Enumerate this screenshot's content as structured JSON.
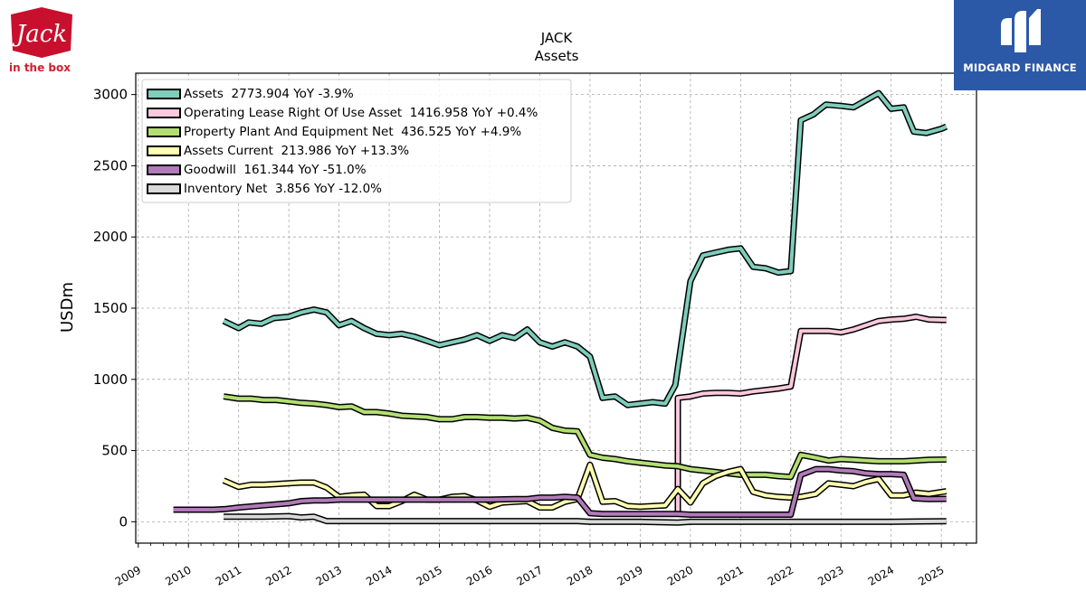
{
  "brand": {
    "left_logo_text": "Jack",
    "left_logo_subtext": "in the box",
    "right_logo_text": "MIDGARD FINANCE",
    "left_logo_color": "#c8102e",
    "right_logo_color": "#2c58a8"
  },
  "chart_data": {
    "type": "line",
    "title": "JACK",
    "subtitle": "Assets",
    "xlabel": "",
    "ylabel": "USDm",
    "xlim": [
      2008.95,
      2025.7
    ],
    "ylim": [
      -150,
      3150
    ],
    "yticks": [
      0,
      500,
      1000,
      1500,
      2000,
      2500,
      3000
    ],
    "xticks": [
      "2009",
      "2010",
      "2011",
      "2012",
      "2013",
      "2014",
      "2015",
      "2016",
      "2017",
      "2018",
      "2019",
      "2020",
      "2021",
      "2022",
      "2023",
      "2024",
      "2025"
    ],
    "grid": true,
    "legend_position": "top-left",
    "series": [
      {
        "name": "Assets",
        "legend": "Assets  2773.904 YoY -3.9%",
        "color": "#7fcdbb",
        "points": [
          [
            2010.7,
            1410
          ],
          [
            2011.0,
            1360
          ],
          [
            2011.2,
            1400
          ],
          [
            2011.45,
            1390
          ],
          [
            2011.7,
            1430
          ],
          [
            2012.0,
            1440
          ],
          [
            2012.25,
            1470
          ],
          [
            2012.5,
            1490
          ],
          [
            2012.75,
            1470
          ],
          [
            2013.0,
            1380
          ],
          [
            2013.25,
            1410
          ],
          [
            2013.5,
            1360
          ],
          [
            2013.75,
            1320
          ],
          [
            2014.0,
            1310
          ],
          [
            2014.25,
            1320
          ],
          [
            2014.5,
            1300
          ],
          [
            2014.75,
            1270
          ],
          [
            2015.0,
            1240
          ],
          [
            2015.25,
            1260
          ],
          [
            2015.5,
            1280
          ],
          [
            2015.75,
            1310
          ],
          [
            2016.0,
            1270
          ],
          [
            2016.25,
            1310
          ],
          [
            2016.5,
            1290
          ],
          [
            2016.75,
            1350
          ],
          [
            2017.0,
            1260
          ],
          [
            2017.25,
            1230
          ],
          [
            2017.5,
            1260
          ],
          [
            2017.75,
            1230
          ],
          [
            2018.0,
            1160
          ],
          [
            2018.25,
            870
          ],
          [
            2018.5,
            880
          ],
          [
            2018.75,
            820
          ],
          [
            2019.0,
            830
          ],
          [
            2019.25,
            840
          ],
          [
            2019.5,
            830
          ],
          [
            2019.7,
            960
          ],
          [
            2020.0,
            1690
          ],
          [
            2020.25,
            1870
          ],
          [
            2020.5,
            1890
          ],
          [
            2020.75,
            1910
          ],
          [
            2021.0,
            1920
          ],
          [
            2021.25,
            1790
          ],
          [
            2021.5,
            1780
          ],
          [
            2021.75,
            1750
          ],
          [
            2022.0,
            1760
          ],
          [
            2022.2,
            2820
          ],
          [
            2022.45,
            2860
          ],
          [
            2022.7,
            2930
          ],
          [
            2023.0,
            2920
          ],
          [
            2023.25,
            2910
          ],
          [
            2023.5,
            2960
          ],
          [
            2023.75,
            3010
          ],
          [
            2024.0,
            2900
          ],
          [
            2024.25,
            2910
          ],
          [
            2024.45,
            2740
          ],
          [
            2024.7,
            2730
          ],
          [
            2025.0,
            2760
          ],
          [
            2025.1,
            2775
          ]
        ]
      },
      {
        "name": "Operating Lease Right Of Use Asset",
        "legend": "Operating Lease Right Of Use Asset  1416.958 YoY +0.4%",
        "color": "#fbc8dc",
        "points": [
          [
            2019.75,
            60
          ],
          [
            2019.75,
            870
          ],
          [
            2020.0,
            880
          ],
          [
            2020.25,
            900
          ],
          [
            2020.5,
            905
          ],
          [
            2020.75,
            905
          ],
          [
            2021.0,
            900
          ],
          [
            2021.25,
            915
          ],
          [
            2021.5,
            925
          ],
          [
            2021.75,
            935
          ],
          [
            2022.0,
            950
          ],
          [
            2022.2,
            1340
          ],
          [
            2022.5,
            1340
          ],
          [
            2022.75,
            1340
          ],
          [
            2023.0,
            1330
          ],
          [
            2023.25,
            1350
          ],
          [
            2023.5,
            1380
          ],
          [
            2023.75,
            1410
          ],
          [
            2024.0,
            1420
          ],
          [
            2024.25,
            1425
          ],
          [
            2024.5,
            1440
          ],
          [
            2024.75,
            1420
          ],
          [
            2025.1,
            1417
          ]
        ]
      },
      {
        "name": "Property Plant And Equipment Net",
        "legend": "Property Plant And Equipment Net  436.525 YoY +4.9%",
        "color": "#b3df72",
        "points": [
          [
            2010.7,
            880
          ],
          [
            2011.0,
            865
          ],
          [
            2011.25,
            865
          ],
          [
            2011.5,
            855
          ],
          [
            2011.75,
            855
          ],
          [
            2012.0,
            845
          ],
          [
            2012.25,
            835
          ],
          [
            2012.5,
            830
          ],
          [
            2012.75,
            820
          ],
          [
            2013.0,
            805
          ],
          [
            2013.25,
            810
          ],
          [
            2013.5,
            770
          ],
          [
            2013.75,
            770
          ],
          [
            2014.0,
            760
          ],
          [
            2014.25,
            745
          ],
          [
            2014.5,
            740
          ],
          [
            2014.75,
            735
          ],
          [
            2015.0,
            720
          ],
          [
            2015.25,
            720
          ],
          [
            2015.5,
            735
          ],
          [
            2015.75,
            735
          ],
          [
            2016.0,
            730
          ],
          [
            2016.25,
            730
          ],
          [
            2016.5,
            725
          ],
          [
            2016.75,
            730
          ],
          [
            2017.0,
            710
          ],
          [
            2017.25,
            660
          ],
          [
            2017.5,
            640
          ],
          [
            2017.75,
            635
          ],
          [
            2018.0,
            470
          ],
          [
            2018.25,
            450
          ],
          [
            2018.5,
            440
          ],
          [
            2018.75,
            425
          ],
          [
            2019.0,
            415
          ],
          [
            2019.25,
            405
          ],
          [
            2019.5,
            395
          ],
          [
            2019.75,
            390
          ],
          [
            2020.0,
            370
          ],
          [
            2020.25,
            360
          ],
          [
            2020.5,
            350
          ],
          [
            2020.75,
            340
          ],
          [
            2021.0,
            330
          ],
          [
            2021.25,
            330
          ],
          [
            2021.5,
            330
          ],
          [
            2021.75,
            320
          ],
          [
            2022.0,
            315
          ],
          [
            2022.2,
            470
          ],
          [
            2022.5,
            450
          ],
          [
            2022.75,
            430
          ],
          [
            2023.0,
            440
          ],
          [
            2023.25,
            435
          ],
          [
            2023.5,
            430
          ],
          [
            2023.75,
            425
          ],
          [
            2024.0,
            425
          ],
          [
            2024.25,
            425
          ],
          [
            2024.5,
            430
          ],
          [
            2024.75,
            435
          ],
          [
            2025.1,
            437
          ]
        ]
      },
      {
        "name": "Assets Current",
        "legend": "Assets Current  213.986 YoY +13.3%",
        "color": "#ffffb3",
        "points": [
          [
            2010.7,
            290
          ],
          [
            2011.0,
            245
          ],
          [
            2011.25,
            260
          ],
          [
            2011.5,
            260
          ],
          [
            2011.75,
            265
          ],
          [
            2012.0,
            270
          ],
          [
            2012.25,
            275
          ],
          [
            2012.5,
            275
          ],
          [
            2012.75,
            240
          ],
          [
            2013.0,
            175
          ],
          [
            2013.25,
            185
          ],
          [
            2013.5,
            190
          ],
          [
            2013.75,
            110
          ],
          [
            2014.0,
            110
          ],
          [
            2014.25,
            145
          ],
          [
            2014.5,
            190
          ],
          [
            2014.75,
            155
          ],
          [
            2015.0,
            155
          ],
          [
            2015.25,
            175
          ],
          [
            2015.5,
            180
          ],
          [
            2015.75,
            150
          ],
          [
            2016.0,
            105
          ],
          [
            2016.25,
            135
          ],
          [
            2016.5,
            140
          ],
          [
            2016.75,
            145
          ],
          [
            2017.0,
            100
          ],
          [
            2017.25,
            100
          ],
          [
            2017.5,
            140
          ],
          [
            2017.75,
            160
          ],
          [
            2018.0,
            400
          ],
          [
            2018.25,
            140
          ],
          [
            2018.5,
            145
          ],
          [
            2018.75,
            110
          ],
          [
            2019.0,
            105
          ],
          [
            2019.25,
            110
          ],
          [
            2019.5,
            115
          ],
          [
            2019.75,
            230
          ],
          [
            2020.0,
            135
          ],
          [
            2020.25,
            270
          ],
          [
            2020.5,
            320
          ],
          [
            2020.75,
            350
          ],
          [
            2021.0,
            370
          ],
          [
            2021.25,
            210
          ],
          [
            2021.5,
            185
          ],
          [
            2021.75,
            175
          ],
          [
            2022.0,
            170
          ],
          [
            2022.2,
            175
          ],
          [
            2022.5,
            195
          ],
          [
            2022.75,
            270
          ],
          [
            2023.0,
            260
          ],
          [
            2023.25,
            250
          ],
          [
            2023.5,
            280
          ],
          [
            2023.75,
            300
          ],
          [
            2024.0,
            185
          ],
          [
            2024.25,
            185
          ],
          [
            2024.5,
            205
          ],
          [
            2024.75,
            195
          ],
          [
            2025.1,
            214
          ]
        ]
      },
      {
        "name": "Goodwill",
        "legend": "Goodwill  161.344 YoY -51.0%",
        "color": "#b17ab9",
        "points": [
          [
            2009.7,
            85
          ],
          [
            2010.0,
            85
          ],
          [
            2010.5,
            85
          ],
          [
            2010.75,
            90
          ],
          [
            2011.0,
            100
          ],
          [
            2011.5,
            115
          ],
          [
            2012.0,
            130
          ],
          [
            2012.25,
            145
          ],
          [
            2012.5,
            150
          ],
          [
            2012.75,
            150
          ],
          [
            2013.0,
            155
          ],
          [
            2013.5,
            155
          ],
          [
            2014.0,
            155
          ],
          [
            2014.5,
            155
          ],
          [
            2015.0,
            155
          ],
          [
            2015.5,
            155
          ],
          [
            2016.0,
            155
          ],
          [
            2016.5,
            160
          ],
          [
            2016.75,
            160
          ],
          [
            2017.0,
            170
          ],
          [
            2017.25,
            170
          ],
          [
            2017.5,
            175
          ],
          [
            2017.75,
            170
          ],
          [
            2018.0,
            60
          ],
          [
            2018.25,
            55
          ],
          [
            2019.0,
            55
          ],
          [
            2019.75,
            55
          ],
          [
            2020.0,
            50
          ],
          [
            2020.5,
            50
          ],
          [
            2021.0,
            50
          ],
          [
            2021.5,
            50
          ],
          [
            2022.0,
            50
          ],
          [
            2022.2,
            330
          ],
          [
            2022.5,
            370
          ],
          [
            2022.75,
            370
          ],
          [
            2023.0,
            360
          ],
          [
            2023.25,
            355
          ],
          [
            2023.5,
            340
          ],
          [
            2023.75,
            335
          ],
          [
            2024.0,
            335
          ],
          [
            2024.25,
            330
          ],
          [
            2024.45,
            165
          ],
          [
            2024.75,
            160
          ],
          [
            2025.1,
            161
          ]
        ]
      },
      {
        "name": "Inventory Net",
        "legend": "Inventory Net  3.856 YoY -12.0%",
        "color": "#d9d9d9",
        "points": [
          [
            2010.7,
            35
          ],
          [
            2011.0,
            35
          ],
          [
            2011.5,
            35
          ],
          [
            2012.0,
            40
          ],
          [
            2012.25,
            30
          ],
          [
            2012.5,
            35
          ],
          [
            2012.75,
            5
          ],
          [
            2013.0,
            5
          ],
          [
            2013.5,
            5
          ],
          [
            2014.0,
            5
          ],
          [
            2015.0,
            5
          ],
          [
            2016.0,
            5
          ],
          [
            2017.0,
            5
          ],
          [
            2017.75,
            5
          ],
          [
            2018.0,
            0
          ],
          [
            2019.0,
            0
          ],
          [
            2019.75,
            -5
          ],
          [
            2020.0,
            0
          ],
          [
            2021.0,
            0
          ],
          [
            2022.0,
            0
          ],
          [
            2023.0,
            0
          ],
          [
            2024.0,
            0
          ],
          [
            2025.1,
            4
          ]
        ]
      }
    ]
  }
}
